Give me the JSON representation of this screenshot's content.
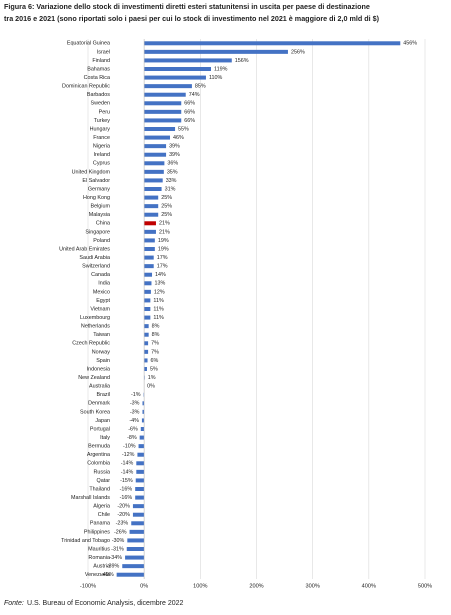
{
  "chart_data": {
    "type": "hbar",
    "title": [
      "Figura 6: Variazione dello stock di investimenti diretti esteri statunitensi in uscita per paese di destinazione",
      "tra 2016 e 2021 (sono riportati solo i paesi per cui lo stock di investimento nel 2021 è maggiore di 2,0 mld di $)"
    ],
    "categories": [
      "Equatorial Guinea",
      "Israel",
      "Finland",
      "Bahamas",
      "Costa Rica",
      "Dominican Republic",
      "Barbados",
      "Sweden",
      "Peru",
      "Turkey",
      "Hungary",
      "France",
      "Nigeria",
      "Ireland",
      "Cyprus",
      "United Kingdom",
      "El Salvador",
      "Germany",
      "Hong Kong",
      "Belgium",
      "Malaysia",
      "China",
      "Singapore",
      "Poland",
      "United Arab Emirates",
      "Saudi Arabia",
      "Switzerland",
      "Canada",
      "India",
      "Mexico",
      "Egypt",
      "Vietnam",
      "Luxembourg",
      "Netherlands",
      "Taiwan",
      "Czech Republic",
      "Norway",
      "Spain",
      "Indonesia",
      "New Zealand",
      "Australia",
      "Brazil",
      "Denmark",
      "South Korea",
      "Japan",
      "Portugal",
      "Italy",
      "Bermuda",
      "Argentina",
      "Colombia",
      "Russia",
      "Qatar",
      "Thailand",
      "Marshall Islands",
      "Algeria",
      "Chile",
      "Panama",
      "Philippines",
      "Trinidad and Tobago",
      "Mauritius",
      "Romania",
      "Austria",
      "Venezuela"
    ],
    "values": [
      456,
      256,
      156,
      119,
      110,
      85,
      74,
      66,
      66,
      66,
      55,
      46,
      39,
      39,
      36,
      35,
      33,
      31,
      25,
      25,
      25,
      21,
      21,
      19,
      19,
      17,
      17,
      14,
      13,
      12,
      11,
      11,
      11,
      8,
      8,
      7,
      7,
      6,
      5,
      1,
      0,
      -1,
      -3,
      -3,
      -4,
      -6,
      -8,
      -10,
      -12,
      -14,
      -14,
      -15,
      -16,
      -16,
      -20,
      -20,
      -23,
      -26,
      -30,
      -31,
      -34,
      -39,
      -49
    ],
    "value_labels": [
      "456%",
      "256%",
      "156%",
      "119%",
      "110%",
      "85%",
      "74%",
      "66%",
      "66%",
      "66%",
      "55%",
      "46%",
      "39%",
      "39%",
      "36%",
      "35%",
      "33%",
      "31%",
      "25%",
      "25%",
      "25%",
      "21%",
      "21%",
      "19%",
      "19%",
      "17%",
      "17%",
      "14%",
      "13%",
      "12%",
      "11%",
      "11%",
      "11%",
      "8%",
      "8%",
      "7%",
      "7%",
      "6%",
      "5%",
      "1%",
      "0%",
      "-1%",
      "-3%",
      "-3%",
      "-4%",
      "-6%",
      "-8%",
      "-10%",
      "-12%",
      "-14%",
      "-14%",
      "-15%",
      "-16%",
      "-16%",
      "-20%",
      "-20%",
      "-23%",
      "-26%",
      "-30%",
      "-31%",
      "-34%",
      "-39%",
      "-49%"
    ],
    "colors": [
      "#4472c4",
      "#4472c4",
      "#4472c4",
      "#4472c4",
      "#4472c4",
      "#4472c4",
      "#4472c4",
      "#4472c4",
      "#4472c4",
      "#4472c4",
      "#4472c4",
      "#4472c4",
      "#4472c4",
      "#4472c4",
      "#4472c4",
      "#4472c4",
      "#4472c4",
      "#4472c4",
      "#4472c4",
      "#4472c4",
      "#4472c4",
      "#c00000",
      "#4472c4",
      "#4472c4",
      "#4472c4",
      "#4472c4",
      "#4472c4",
      "#4472c4",
      "#4472c4",
      "#4472c4",
      "#4472c4",
      "#4472c4",
      "#4472c4",
      "#4472c4",
      "#4472c4",
      "#4472c4",
      "#4472c4",
      "#4472c4",
      "#4472c4",
      "#4472c4",
      "#4472c4",
      "#4472c4",
      "#4472c4",
      "#4472c4",
      "#4472c4",
      "#4472c4",
      "#4472c4",
      "#4472c4",
      "#4472c4",
      "#4472c4",
      "#4472c4",
      "#4472c4",
      "#4472c4",
      "#4472c4",
      "#4472c4",
      "#4472c4",
      "#4472c4",
      "#4472c4",
      "#4472c4",
      "#4472c4",
      "#4472c4",
      "#4472c4",
      "#4472c4"
    ],
    "xlim": [
      -100,
      500
    ],
    "xticks": [
      {
        "value": -100,
        "label": "-100%"
      },
      {
        "value": 0,
        "label": "0%"
      },
      {
        "value": 100,
        "label": "100%"
      },
      {
        "value": 200,
        "label": "200%"
      },
      {
        "value": 300,
        "label": "300%"
      },
      {
        "value": 400,
        "label": "400%"
      },
      {
        "value": 500,
        "label": "500%"
      }
    ],
    "grid": true,
    "source_label": "Fonte:",
    "source": "U.S. Bureau of Economic Analysis, dicembre 2022"
  }
}
